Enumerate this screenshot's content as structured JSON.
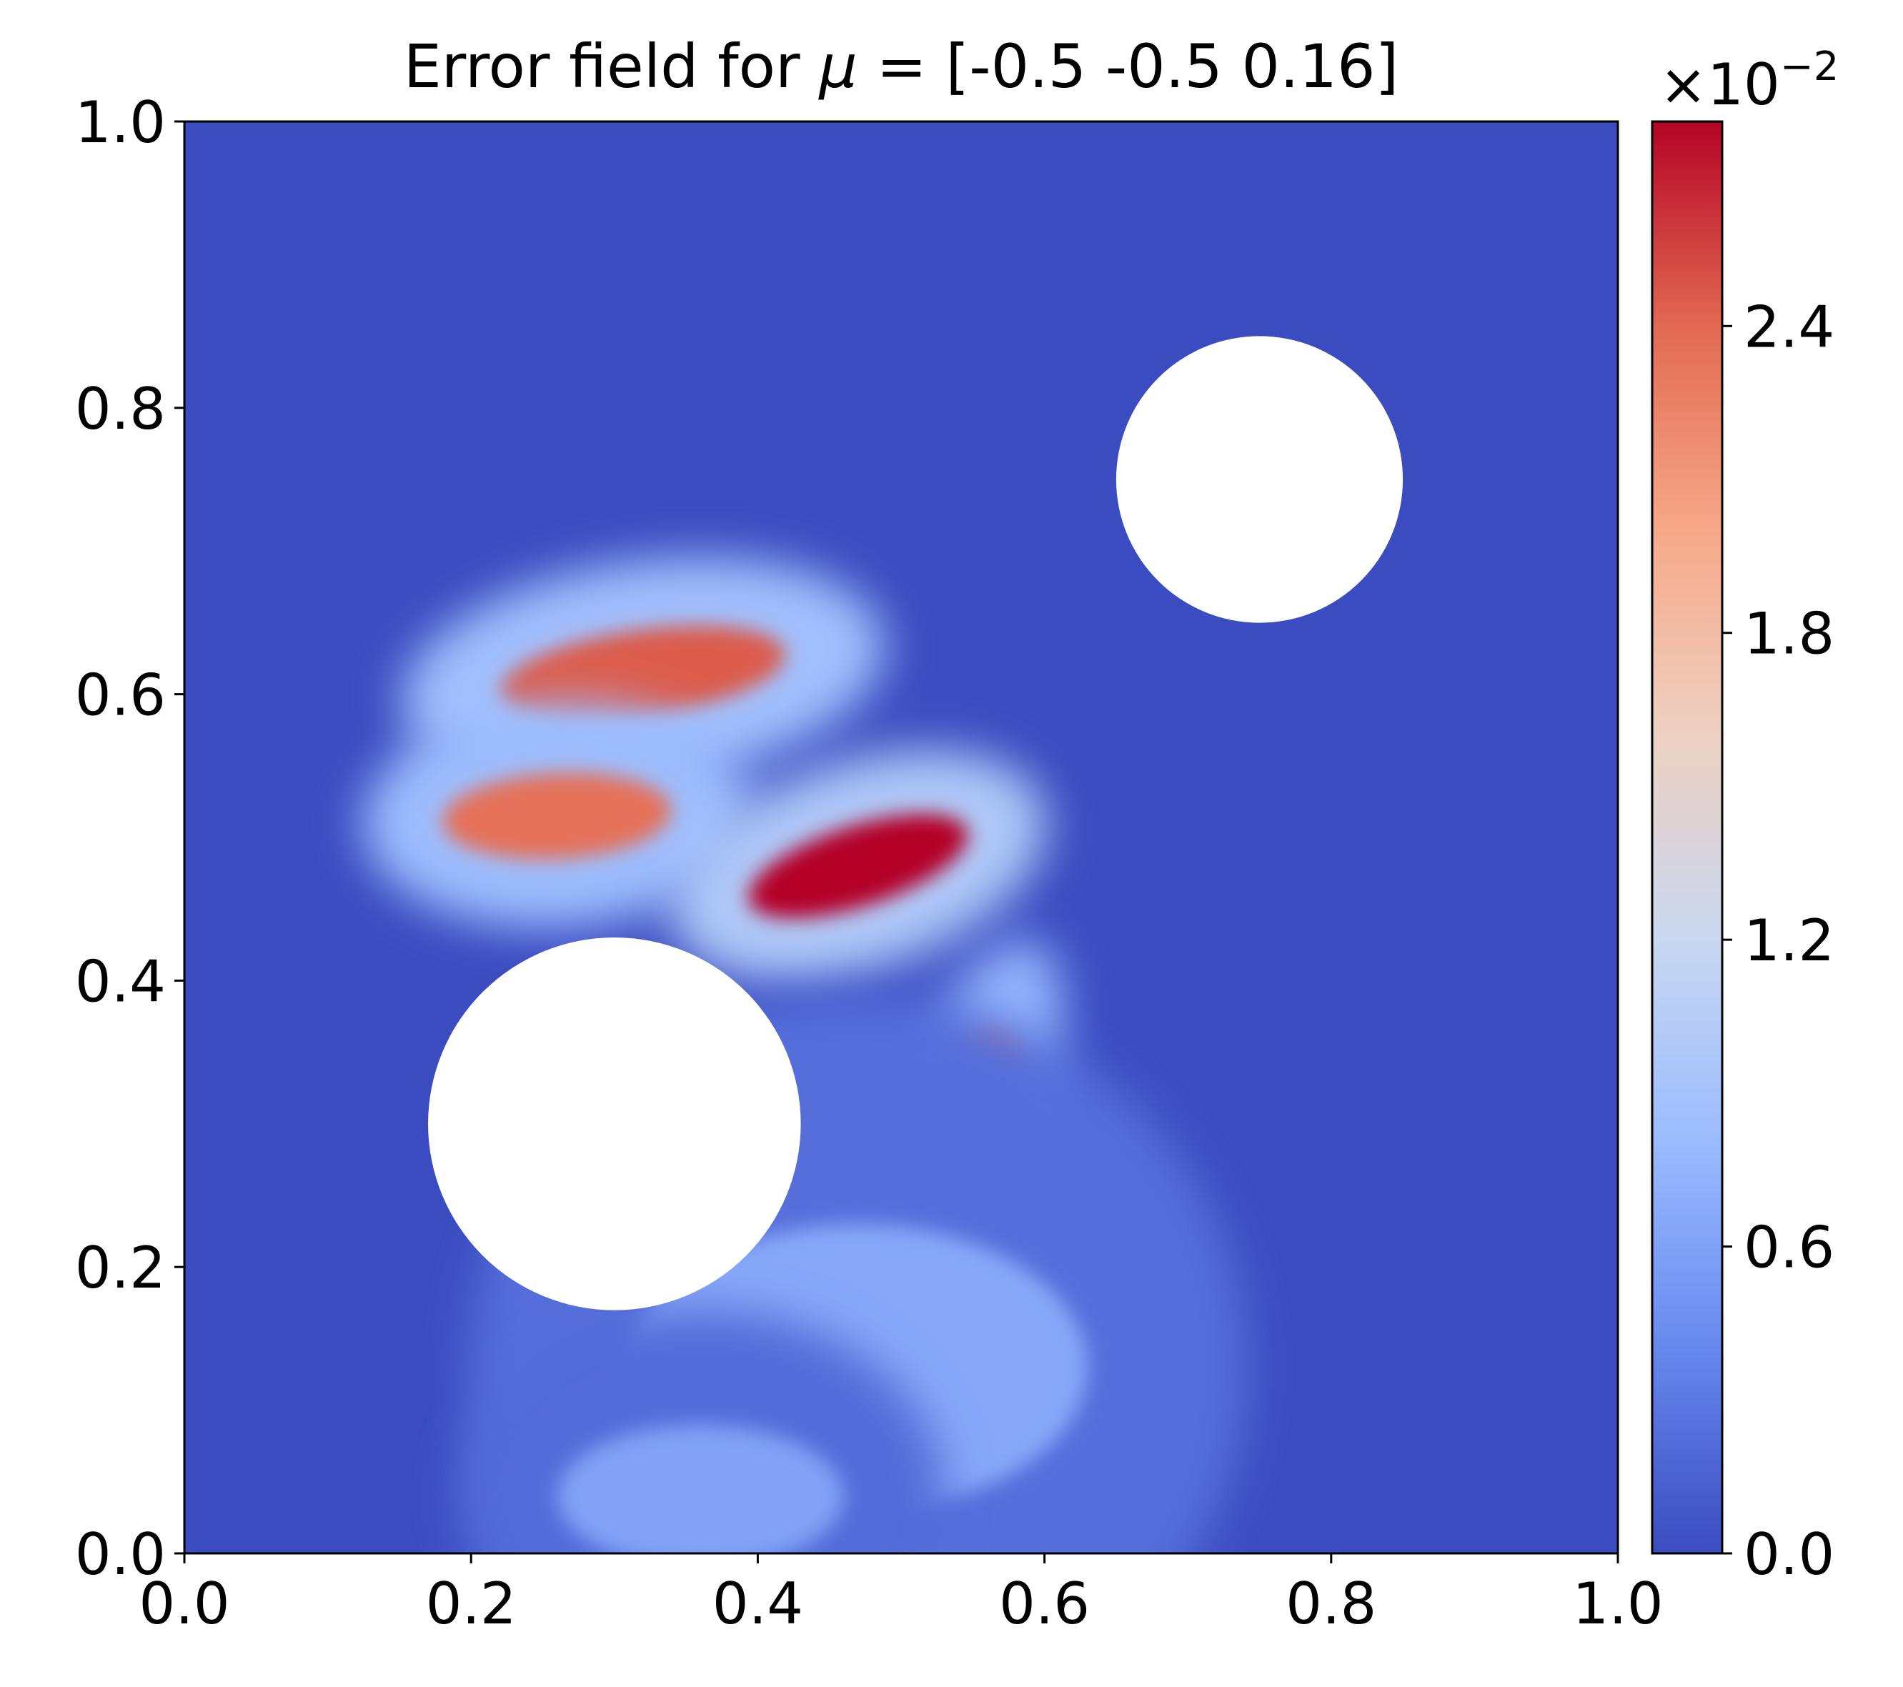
{
  "chart_data": {
    "type": "heatmap",
    "title": {
      "prefix": "Error field for ",
      "symbol": "μ",
      "suffix": " = [-0.5  -0.5   0.16]"
    },
    "xlabel": "",
    "ylabel": "",
    "xlim": [
      0.0,
      1.0
    ],
    "ylim": [
      0.0,
      1.0
    ],
    "x_ticks": [
      0.0,
      0.2,
      0.4,
      0.6,
      0.8,
      1.0
    ],
    "y_ticks": [
      0.0,
      0.2,
      0.4,
      0.6,
      0.8,
      1.0
    ],
    "x_tick_labels": [
      "0.0",
      "0.2",
      "0.4",
      "0.6",
      "0.8",
      "1.0"
    ],
    "y_tick_labels": [
      "0.0",
      "0.2",
      "0.4",
      "0.6",
      "0.8",
      "1.0"
    ],
    "grid": false,
    "colormap": "coolwarm",
    "colormap_stops": [
      "#3b4cc0",
      "#6788ee",
      "#9abbff",
      "#c9d7f0",
      "#edd1c2",
      "#f7a889",
      "#e26952",
      "#b40426"
    ],
    "colorbar": {
      "min": 0.0,
      "max": 2.8,
      "ticks": [
        0.0,
        0.6,
        1.2,
        1.8,
        2.4
      ],
      "tick_labels": [
        "0.0",
        "0.6",
        "1.2",
        "1.8",
        "2.4"
      ],
      "multiplier_base": "×10",
      "multiplier_exponent": "−2"
    },
    "holes": [
      {
        "cx": 0.3,
        "cy": 0.3,
        "r": 0.13
      },
      {
        "cx": 0.75,
        "cy": 0.75,
        "r": 0.1
      }
    ],
    "error_regions": [
      {
        "cx": 0.32,
        "cy": 0.615,
        "rx": 0.1,
        "ry": 0.03,
        "angle": -8,
        "peak": 2.45
      },
      {
        "cx": 0.26,
        "cy": 0.515,
        "rx": 0.08,
        "ry": 0.03,
        "angle": -3,
        "peak": 2.35
      },
      {
        "cx": 0.47,
        "cy": 0.48,
        "rx": 0.08,
        "ry": 0.028,
        "angle": -18,
        "peak": 2.8
      },
      {
        "cx": 0.555,
        "cy": 0.325,
        "rx": 0.028,
        "ry": 0.042,
        "angle": 20,
        "peak": 2.15
      },
      {
        "cx": 0.47,
        "cy": 0.13,
        "rx": 0.16,
        "ry": 0.1,
        "angle": 0,
        "peak": 0.65
      },
      {
        "cx": 0.36,
        "cy": 0.04,
        "rx": 0.1,
        "ry": 0.05,
        "angle": 0,
        "peak": 0.6
      }
    ]
  }
}
